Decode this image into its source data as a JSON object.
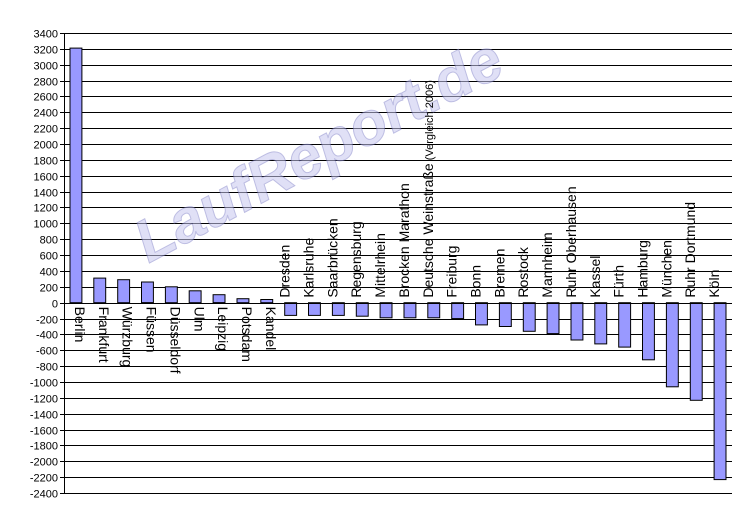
{
  "chart_data": {
    "type": "bar",
    "watermark": "LaufReport.de",
    "title": "",
    "xlabel": "",
    "ylabel": "",
    "ylim": [
      -2400,
      3400
    ],
    "ytick_step": 200,
    "yticks": [
      3400,
      3200,
      3000,
      2800,
      2600,
      2400,
      2200,
      2000,
      1800,
      1600,
      1400,
      1200,
      1000,
      800,
      600,
      400,
      200,
      0,
      -200,
      -400,
      -600,
      -800,
      -1000,
      -1200,
      -1400,
      -1600,
      -1800,
      -2000,
      -2200,
      -2400
    ],
    "grid": true,
    "legend": "none",
    "colors": {
      "bar_fill": "#9999ff",
      "bar_edge": "#000000",
      "grid": "#000000",
      "watermark": "#c8c8f0"
    },
    "categories": [
      "Berlin",
      "Frankfurt",
      "Würzburg",
      "Füssen",
      "Düsseldorf",
      "Ulm",
      "Leipzig",
      "Potsdam",
      "Kandel",
      "Dresden",
      "Karlsruhe",
      "Saarbrücken",
      "Regensburg",
      "Mittelrhein",
      "Brocken Marathon",
      "Deutsche Weinstraße",
      "Freiburg",
      "Bonn",
      "Bremen",
      "Rostock",
      "Mannheim",
      "Ruhr Oberhausen",
      "Kassel",
      "Fürth",
      "Hamburg",
      "München",
      "Ruhr Dortmund",
      "Köln"
    ],
    "category_notes": {
      "Deutsche Weinstraße": "(Vergleich 2006)"
    },
    "values": [
      3210,
      310,
      290,
      260,
      200,
      150,
      100,
      50,
      40,
      -160,
      -160,
      -160,
      -170,
      -190,
      -190,
      -190,
      -200,
      -280,
      -300,
      -360,
      -390,
      -470,
      -520,
      -560,
      -720,
      -1060,
      -1230,
      -2230
    ]
  }
}
